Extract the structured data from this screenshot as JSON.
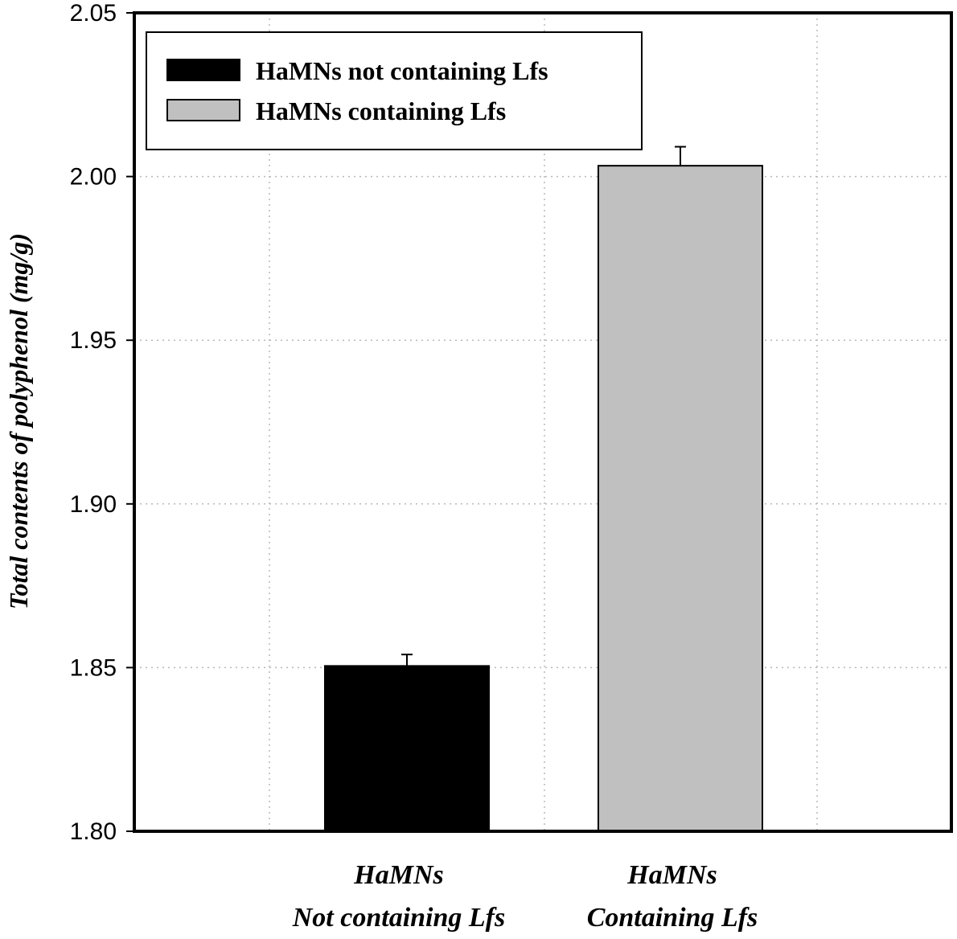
{
  "chart_data": {
    "type": "bar",
    "title": "",
    "xlabel": "",
    "ylabel": "Total contents of polyphenol (mg/g)",
    "ylim": [
      1.8,
      2.05
    ],
    "yticks": [
      "1.80",
      "1.85",
      "1.90",
      "1.95",
      "2.00",
      "2.05"
    ],
    "grid": true,
    "legend_position": "top-left",
    "categories": [
      {
        "line1": "HaMNs",
        "line2": "Not containing Lfs"
      },
      {
        "line1": "HaMNs",
        "line2": "Containing Lfs"
      }
    ],
    "series": [
      {
        "name": "HaMNs not containing Lfs",
        "color": "#000000",
        "category_index": 0,
        "value": 1.8505,
        "error": 0.0035
      },
      {
        "name": "HaMNs containing Lfs",
        "color": "#c0c0c0",
        "category_index": 1,
        "value": 2.0033,
        "error": 0.0058
      }
    ]
  }
}
